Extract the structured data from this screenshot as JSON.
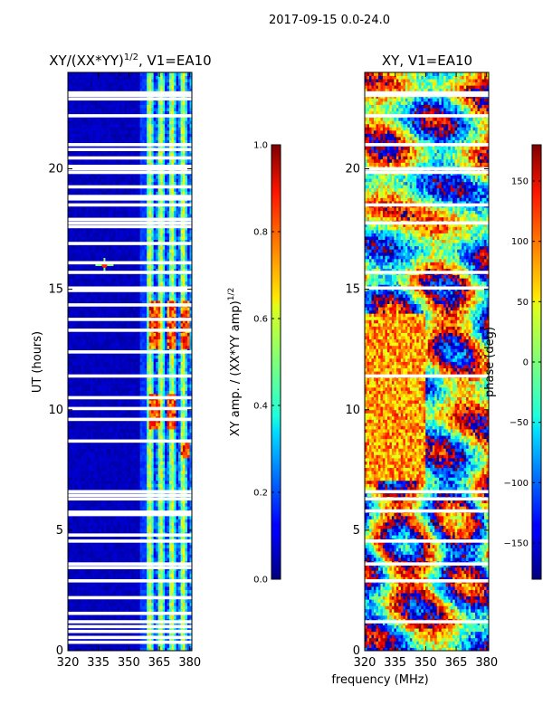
{
  "figure": {
    "suptitle": "2017-09-15 0.0-24.0",
    "xlabel": "frequency (MHz)"
  },
  "chart_data": [
    {
      "type": "heatmap",
      "title": "XY/(XX*YY)",
      "title_sup": "1/2",
      "title_suffix": ", V1=EA10",
      "xlabel": "",
      "ylabel": "UT (hours)",
      "xlim": [
        320,
        381
      ],
      "ylim": [
        0,
        24
      ],
      "x_ticks": [
        320,
        335,
        350,
        365,
        380
      ],
      "y_ticks": [
        0,
        5,
        10,
        15,
        20
      ],
      "grid": false,
      "colormap": "jet",
      "colorbar": {
        "label": "XY amp. / (XX*YY amp)",
        "label_sup": "1/2",
        "range": [
          0.0,
          1.0
        ],
        "ticks": [
          "0.0",
          "0.2",
          "0.4",
          "0.6",
          "0.8",
          "1.0"
        ]
      },
      "features": {
        "active_band_mhz": [
          359,
          381
        ],
        "blank_rows_ut": [
          0.35,
          0.55,
          0.8,
          1.0,
          1.2,
          1.55,
          2.2,
          2.9,
          3.45,
          3.6,
          4.55,
          4.8,
          5.65,
          5.75,
          6.3,
          6.45,
          6.6,
          8.7,
          9.6,
          10.05,
          10.5,
          11.4,
          12.4,
          13.3,
          13.75,
          14.35,
          14.95,
          15.05,
          15.7,
          16.1,
          16.9,
          17.6,
          17.75,
          17.9,
          18.5,
          18.75,
          18.85,
          19.25,
          19.85,
          20.0,
          20.1,
          20.45,
          20.8,
          21.0,
          22.2,
          22.9,
          23.05,
          23.15
        ],
        "bright_blocks": [
          [
            360,
            366,
            12.5,
            14.5
          ],
          [
            369,
            373,
            12.5,
            14.5
          ],
          [
            376,
            380,
            12.5,
            14.5
          ],
          [
            360,
            366,
            9.2,
            10.6
          ],
          [
            369,
            373,
            9.2,
            10.6
          ],
          [
            376,
            380,
            8.0,
            8.6
          ]
        ],
        "point_source": {
          "freq_mhz": 338,
          "ut_hours": 16.0
        }
      }
    },
    {
      "type": "heatmap",
      "title": "XY, V1=EA10",
      "xlabel": "",
      "ylabel": "",
      "xlim": [
        320,
        381
      ],
      "ylim": [
        0,
        24
      ],
      "x_ticks": [
        320,
        335,
        350,
        365,
        380
      ],
      "y_ticks": [
        0,
        5,
        10,
        15,
        20
      ],
      "grid": false,
      "colormap": "jet",
      "colorbar": {
        "label": "phase (deg)",
        "range": [
          -180,
          180
        ],
        "ticks": [
          "−150",
          "−100",
          "−50",
          "0",
          "50",
          "100",
          "150"
        ]
      },
      "features": {
        "blank_rows_ut": [
          1.2,
          2.9,
          3.6,
          4.55,
          5.8,
          6.3,
          6.6,
          11.4,
          15.05,
          15.7,
          17.75,
          18.5,
          19.85,
          20.0,
          21.0,
          22.2,
          23.05,
          23.15
        ]
      }
    }
  ]
}
